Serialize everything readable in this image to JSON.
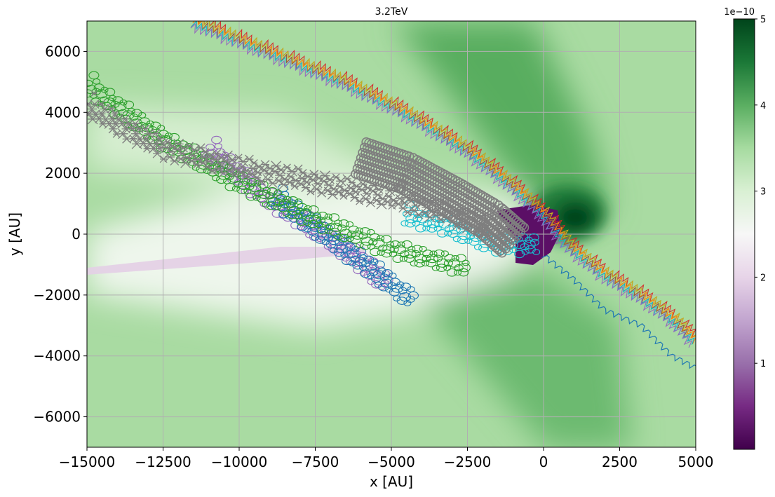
{
  "chart_data": {
    "type": "heatmap",
    "title": "3.2TeV",
    "xlabel": "x [AU]",
    "ylabel": "y [AU]",
    "xlim": [
      -15000,
      5000
    ],
    "ylim": [
      -7000,
      7000
    ],
    "xticks": [
      -15000,
      -12500,
      -10000,
      -7500,
      -5000,
      -2500,
      0,
      2500,
      5000
    ],
    "xtick_labels": [
      "−15000",
      "−12500",
      "−10000",
      "−7500",
      "−5000",
      "−2500",
      "0",
      "2500",
      "5000"
    ],
    "yticks": [
      -6000,
      -4000,
      -2000,
      0,
      2000,
      4000,
      6000
    ],
    "ytick_labels": [
      "−6000",
      "−4000",
      "−2000",
      "0",
      "2000",
      "4000",
      "6000"
    ],
    "grid": true,
    "colormap": "PRGn",
    "colorbar": {
      "range": [
        0,
        5
      ],
      "ticks": [
        1,
        2,
        3,
        4,
        5
      ],
      "tick_labels": [
        "1",
        "2",
        "3",
        "4",
        "5"
      ],
      "scale_label": "1e−10"
    },
    "series_colors": [
      "#1f77b4",
      "#ff7f0e",
      "#2ca02c",
      "#d62728",
      "#9467bd",
      "#8c564b",
      "#e377c2",
      "#7f7f7f",
      "#bcbd22",
      "#17becf"
    ],
    "series": [
      {
        "style": "streams",
        "points": [
          [
            -11500,
            7000
          ],
          [
            -9000,
            6000
          ],
          [
            -6500,
            5000
          ],
          [
            -4500,
            4000
          ],
          [
            -2500,
            2800
          ],
          [
            -1000,
            1600
          ],
          [
            0,
            700
          ],
          [
            900,
            -400
          ],
          [
            2000,
            -1300
          ],
          [
            3200,
            -2000
          ],
          [
            4300,
            -2800
          ],
          [
            5000,
            -3500
          ]
        ]
      },
      {
        "style": "wavy-line",
        "color": "#1f77b4",
        "points": [
          [
            0,
            -700
          ],
          [
            1000,
            -1500
          ],
          [
            2000,
            -2500
          ],
          [
            3200,
            -3000
          ],
          [
            4200,
            -4000
          ],
          [
            5000,
            -4400
          ]
        ]
      },
      {
        "style": "circle-chain",
        "color": "#9467bd",
        "points": [
          [
            -11000,
            2800
          ],
          [
            -9500,
            1500
          ],
          [
            -8000,
            500
          ],
          [
            -6500,
            -500
          ],
          [
            -5200,
            -1600
          ]
        ]
      },
      {
        "style": "circle-chain",
        "color": "#1f77b4",
        "points": [
          [
            -8800,
            1200
          ],
          [
            -7200,
            0
          ],
          [
            -5700,
            -1100
          ],
          [
            -4300,
            -2200
          ]
        ]
      },
      {
        "style": "circle-chain",
        "color": "#2ca02c",
        "points": [
          [
            -15000,
            4900
          ],
          [
            -12500,
            3100
          ],
          [
            -10000,
            1700
          ],
          [
            -7500,
            500
          ],
          [
            -5000,
            -500
          ],
          [
            -2500,
            -1100
          ]
        ]
      },
      {
        "style": "circle-chain",
        "color": "#17becf",
        "points": [
          [
            -4500,
            600
          ],
          [
            -3000,
            200
          ],
          [
            -1800,
            -300
          ],
          [
            -800,
            -400
          ],
          [
            -200,
            -300
          ]
        ]
      },
      {
        "style": "cross-chain",
        "color": "#7f7f7f",
        "points": [
          [
            -15000,
            4200
          ],
          [
            -12500,
            2800
          ],
          [
            -10000,
            2200
          ],
          [
            -7500,
            1700
          ],
          [
            -5000,
            1200
          ],
          [
            -2500,
            500
          ],
          [
            -1200,
            0
          ]
        ]
      },
      {
        "style": "grey-stripe",
        "color": "#7f7f7f",
        "points": [
          [
            -6000,
            2500
          ],
          [
            -4500,
            2000
          ],
          [
            -3000,
            1200
          ],
          [
            -1800,
            500
          ],
          [
            -1000,
            -200
          ]
        ]
      }
    ]
  }
}
